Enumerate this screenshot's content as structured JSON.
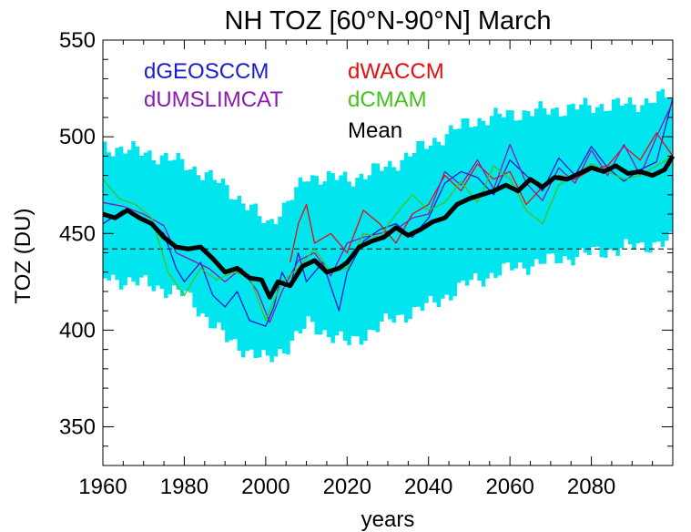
{
  "chart_data": {
    "type": "line",
    "title": "NH TOZ [60°N-90°N] March",
    "xlabel": "years",
    "ylabel": "TOZ (DU)",
    "xlim": [
      1960,
      2100
    ],
    "ylim": [
      330,
      550
    ],
    "xticks": [
      1960,
      1980,
      2000,
      2020,
      2040,
      2060,
      2080
    ],
    "yticks": [
      350,
      400,
      450,
      500,
      550
    ],
    "reference_line": 442,
    "legend_position": "top-left",
    "band": {
      "color": "#00E5EE",
      "x": [
        1960,
        1970,
        1980,
        1990,
        2000,
        2005,
        2010,
        2020,
        2030,
        2040,
        2050,
        2060,
        2070,
        2080,
        2090,
        2100
      ],
      "upper": [
        495,
        492,
        486,
        474,
        455,
        466,
        480,
        478,
        485,
        497,
        508,
        512,
        514,
        516,
        517,
        522
      ],
      "lower": [
        427,
        424,
        418,
        395,
        384,
        392,
        403,
        393,
        405,
        413,
        425,
        432,
        436,
        440,
        443,
        446
      ]
    },
    "series": [
      {
        "name": "dGEOSCCM",
        "color": "#1a1ad0",
        "x": [
          1960,
          1965,
          1970,
          1975,
          1978,
          1980,
          1984,
          1987,
          1990,
          1993,
          1996,
          2000,
          2002,
          2004,
          2006,
          2008,
          2010,
          2014,
          2018,
          2020,
          2024,
          2028,
          2032,
          2036,
          2040,
          2044,
          2048,
          2052,
          2056,
          2060,
          2064,
          2068,
          2072,
          2076,
          2080,
          2084,
          2088,
          2092,
          2096,
          2100
        ],
        "y": [
          455,
          462,
          458,
          450,
          432,
          425,
          435,
          418,
          412,
          420,
          405,
          402,
          412,
          430,
          422,
          440,
          425,
          435,
          410,
          430,
          446,
          452,
          455,
          448,
          458,
          476,
          482,
          479,
          470,
          488,
          480,
          472,
          489,
          480,
          495,
          484,
          477,
          483,
          487,
          520
        ]
      },
      {
        "name": "dWACCM",
        "color": "#e01010",
        "x": [
          2006,
          2008,
          2010,
          2012,
          2016,
          2020,
          2024,
          2028,
          2032,
          2036,
          2040,
          2044,
          2048,
          2052,
          2056,
          2060,
          2064,
          2068,
          2072,
          2076,
          2080,
          2084,
          2088,
          2092,
          2096,
          2100
        ],
        "y": [
          435,
          455,
          465,
          445,
          450,
          440,
          462,
          455,
          445,
          460,
          465,
          480,
          472,
          486,
          478,
          482,
          465,
          474,
          480,
          478,
          483,
          485,
          495,
          488,
          502,
          490
        ]
      },
      {
        "name": "dUMSLIMCAT",
        "color": "#8a1ab4",
        "x": [
          1960,
          1965,
          1970,
          1975,
          1978,
          1982,
          1986,
          1990,
          1994,
          1998,
          2001,
          2004,
          2008,
          2012,
          2016,
          2020,
          2024,
          2028,
          2032,
          2036,
          2040,
          2044,
          2048,
          2052,
          2056,
          2060,
          2064,
          2068,
          2072,
          2076,
          2080,
          2084,
          2088,
          2092,
          2096,
          2100
        ],
        "y": [
          466,
          464,
          460,
          454,
          440,
          436,
          432,
          425,
          432,
          420,
          404,
          420,
          436,
          440,
          428,
          445,
          448,
          450,
          452,
          458,
          460,
          482,
          475,
          488,
          473,
          496,
          476,
          467,
          484,
          476,
          493,
          480,
          496,
          480,
          500,
          518
        ]
      },
      {
        "name": "dCMAM",
        "color": "#44c21a",
        "x": [
          1960,
          1964,
          1968,
          1972,
          1976,
          1980,
          1984,
          1988,
          1992,
          1996,
          2000,
          2004,
          2008,
          2012,
          2016,
          2020,
          2024,
          2028,
          2032,
          2036,
          2040,
          2044,
          2048,
          2052,
          2056,
          2060,
          2064,
          2068,
          2072,
          2076,
          2080,
          2084,
          2088,
          2092,
          2096,
          2100
        ],
        "y": [
          478,
          468,
          465,
          458,
          430,
          418,
          432,
          426,
          430,
          428,
          405,
          425,
          432,
          442,
          430,
          432,
          450,
          448,
          460,
          470,
          462,
          466,
          477,
          466,
          485,
          478,
          462,
          455,
          475,
          480,
          486,
          482,
          478,
          480,
          485,
          490
        ]
      },
      {
        "name": "Mean",
        "color": "#000000",
        "x": [
          1960,
          1963,
          1966,
          1969,
          1972,
          1975,
          1978,
          1981,
          1984,
          1987,
          1990,
          1993,
          1996,
          1999,
          2001,
          2003,
          2006,
          2009,
          2012,
          2015,
          2018,
          2020,
          2023,
          2026,
          2029,
          2032,
          2035,
          2038,
          2041,
          2044,
          2047,
          2050,
          2053,
          2056,
          2059,
          2062,
          2065,
          2068,
          2071,
          2074,
          2077,
          2080,
          2083,
          2086,
          2089,
          2092,
          2095,
          2098,
          2100
        ],
        "y": [
          460,
          458,
          462,
          458,
          455,
          448,
          443,
          442,
          443,
          437,
          430,
          432,
          427,
          426,
          417,
          425,
          423,
          433,
          436,
          430,
          432,
          435,
          443,
          446,
          448,
          453,
          449,
          452,
          456,
          458,
          465,
          468,
          470,
          472,
          475,
          472,
          478,
          474,
          479,
          478,
          481,
          484,
          482,
          485,
          481,
          482,
          480,
          483,
          490
        ]
      }
    ]
  }
}
